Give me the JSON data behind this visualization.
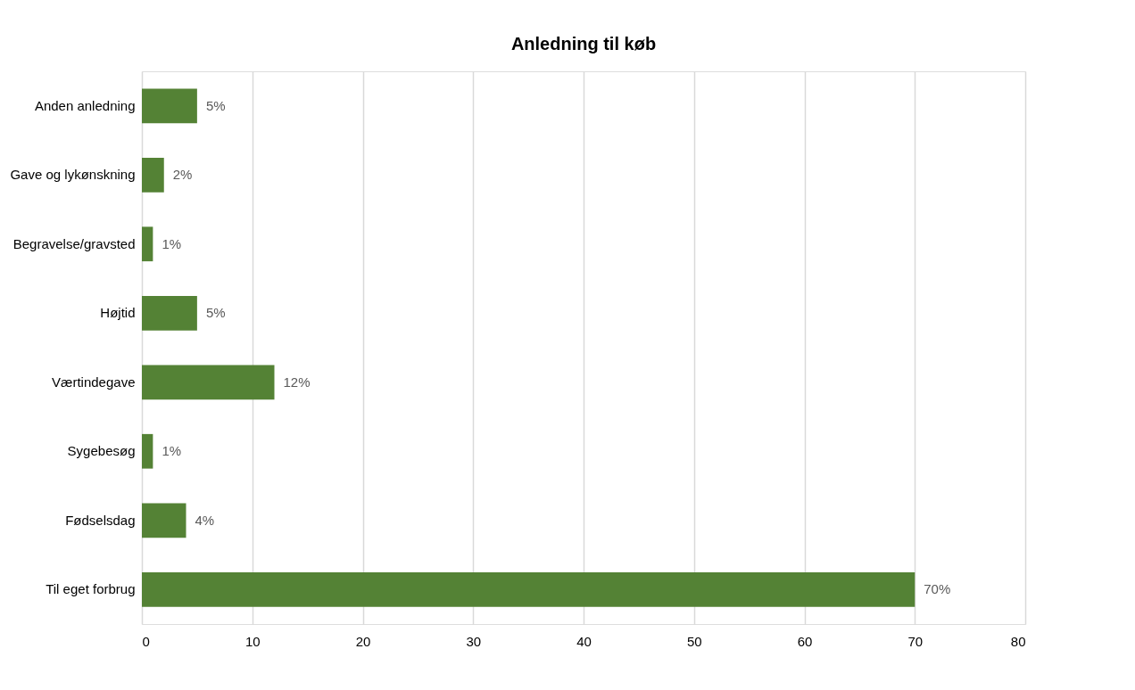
{
  "chart_data": {
    "type": "bar",
    "orientation": "horizontal",
    "title": "Anledning til køb",
    "categories": [
      "Anden anledning",
      "Gave og lykønskning",
      "Begravelse/gravsted",
      "Højtid",
      "Værtindegave",
      "Sygebesøg",
      "Fødselsdag",
      "Til eget forbrug"
    ],
    "values": [
      5,
      2,
      1,
      5,
      12,
      1,
      4,
      70
    ],
    "value_labels": [
      "5%",
      "2%",
      "1%",
      "5%",
      "12%",
      "1%",
      "4%",
      "70%"
    ],
    "color": "#548235",
    "xlim": [
      0,
      80
    ],
    "xticks": [
      0,
      10,
      20,
      30,
      40,
      50,
      60,
      70,
      80
    ],
    "grid": "x"
  }
}
